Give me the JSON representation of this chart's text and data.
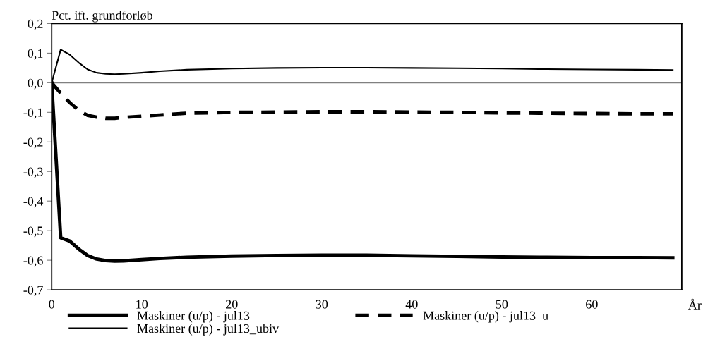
{
  "chart_data": {
    "type": "line",
    "ylabel": "Pct. ift. grundforløb",
    "xlabel": "År",
    "x": [
      0,
      1,
      2,
      3,
      4,
      5,
      6,
      7,
      8,
      10,
      12,
      15,
      20,
      25,
      30,
      35,
      40,
      45,
      50,
      55,
      60,
      65,
      69
    ],
    "series": [
      {
        "name": "Maskiner (u/p) - jul13",
        "color": "#000000",
        "line_style": "solid",
        "values": [
          0,
          -0.524,
          -0.535,
          -0.562,
          -0.584,
          -0.596,
          -0.601,
          -0.603,
          -0.602,
          -0.598,
          -0.594,
          -0.59,
          -0.586,
          -0.584,
          -0.583,
          -0.583,
          -0.585,
          -0.587,
          -0.589,
          -0.59,
          -0.591,
          -0.591,
          -0.592
        ]
      },
      {
        "name": "Maskiner (u/p) - jul13_u",
        "color": "#000000",
        "line_style": "dashed",
        "values": [
          0,
          -0.035,
          -0.067,
          -0.093,
          -0.11,
          -0.116,
          -0.12,
          -0.12,
          -0.117,
          -0.113,
          -0.109,
          -0.103,
          -0.1,
          -0.099,
          -0.098,
          -0.098,
          -0.099,
          -0.1,
          -0.102,
          -0.103,
          -0.104,
          -0.105,
          -0.105
        ]
      },
      {
        "name": "Maskiner (u/p) - jul13_ubiv",
        "color": "#000000",
        "line_style": "solid",
        "values": [
          0,
          0.112,
          0.095,
          0.068,
          0.045,
          0.034,
          0.03,
          0.029,
          0.03,
          0.034,
          0.039,
          0.044,
          0.048,
          0.05,
          0.051,
          0.051,
          0.05,
          0.049,
          0.048,
          0.046,
          0.045,
          0.044,
          0.043
        ]
      }
    ],
    "xlim": [
      0,
      70
    ],
    "xticks": [
      0,
      10,
      20,
      30,
      40,
      50,
      60
    ],
    "ylim": [
      -0.7,
      0.2
    ],
    "yticks": [
      {
        "value": 0.2,
        "label": "0,2"
      },
      {
        "value": 0.1,
        "label": "0,1"
      },
      {
        "value": 0,
        "label": "0,0"
      },
      {
        "value": -0.1,
        "label": "-0,1"
      },
      {
        "value": -0.2,
        "label": "-0,2"
      },
      {
        "value": -0.3,
        "label": "-0,3"
      },
      {
        "value": -0.4,
        "label": "-0,4"
      },
      {
        "value": -0.5,
        "label": "-0,5"
      },
      {
        "value": -0.6,
        "label": "-0,6"
      },
      {
        "value": -0.7,
        "label": "-0,7"
      }
    ],
    "ref_lines": [
      {
        "axis": "y",
        "value": 0,
        "color": "#808080"
      }
    ],
    "grid": false,
    "legend": "bottom",
    "marker": "none"
  }
}
